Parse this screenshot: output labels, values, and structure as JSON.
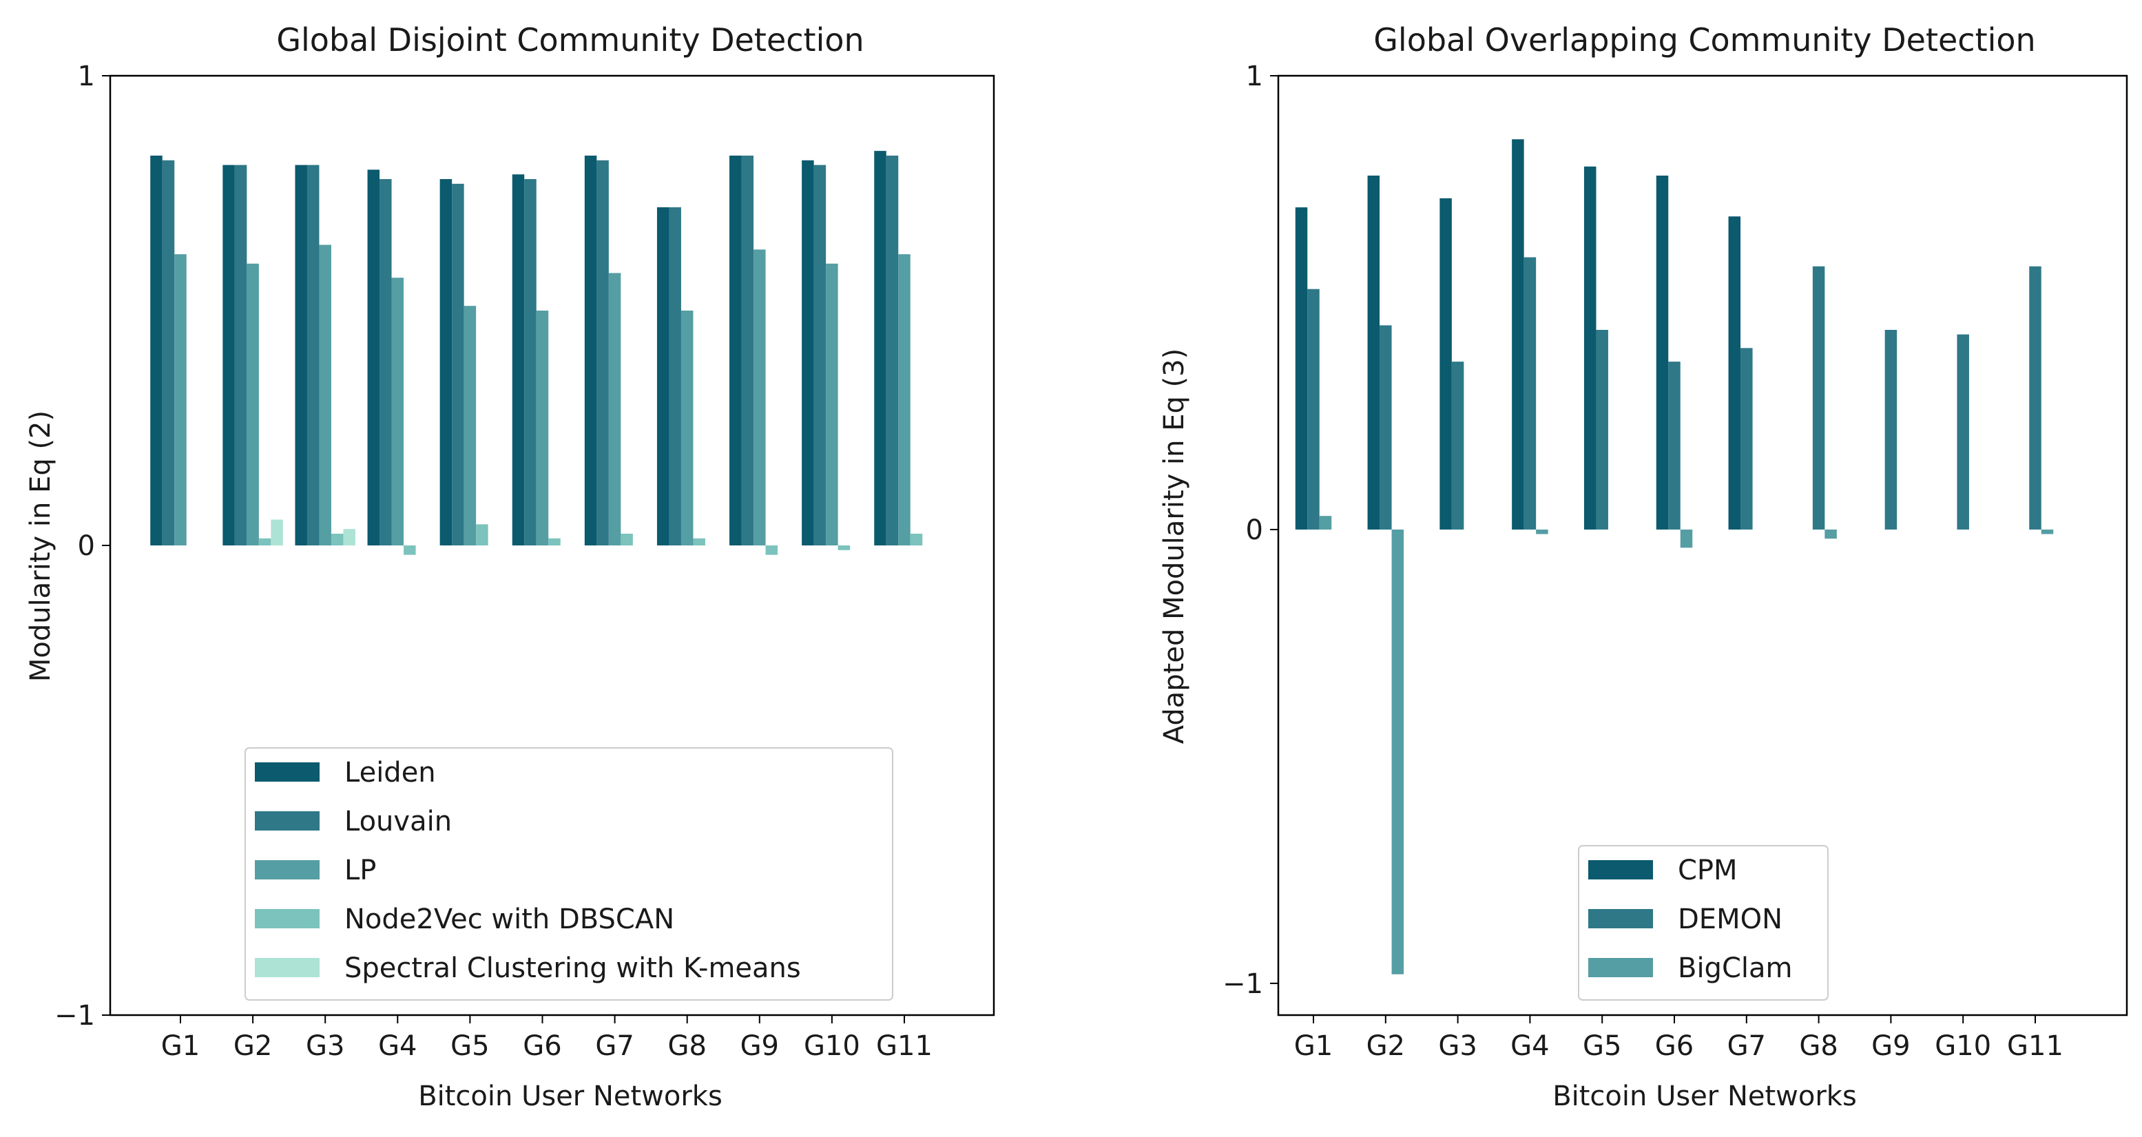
{
  "chart_data": [
    {
      "type": "bar",
      "title": "Global Disjoint Community Detection",
      "xlabel": "Bitcoin User Networks",
      "ylabel": "Modularity in Eq (2)",
      "ylim": [
        -1,
        1
      ],
      "yticks": [
        -1,
        0,
        1
      ],
      "yticklabels": [
        "−1",
        "0",
        "1"
      ],
      "categories": [
        "G1",
        "G2",
        "G3",
        "G4",
        "G5",
        "G6",
        "G7",
        "G8",
        "G9",
        "G10",
        "G11"
      ],
      "legend_position": "lower-center",
      "series": [
        {
          "name": "Leiden",
          "color": "#0b5a6e",
          "values": [
            0.83,
            0.81,
            0.81,
            0.8,
            0.78,
            0.79,
            0.83,
            0.72,
            0.83,
            0.82,
            0.84
          ]
        },
        {
          "name": "Louvain",
          "color": "#2e7888",
          "values": [
            0.82,
            0.81,
            0.81,
            0.78,
            0.77,
            0.78,
            0.82,
            0.72,
            0.83,
            0.81,
            0.83
          ]
        },
        {
          "name": "LP",
          "color": "#559ea3",
          "values": [
            0.62,
            0.6,
            0.64,
            0.57,
            0.51,
            0.5,
            0.58,
            0.5,
            0.63,
            0.6,
            0.62
          ]
        },
        {
          "name": "Node2Vec with DBSCAN",
          "color": "#7bc3bc",
          "values": [
            0.0,
            0.015,
            0.025,
            -0.02,
            0.045,
            0.015,
            0.025,
            0.015,
            -0.02,
            -0.01,
            0.025
          ]
        },
        {
          "name": "Spectral Clustering with K-means",
          "color": "#ade3d5",
          "values": [
            0.0,
            0.055,
            0.035,
            0.0,
            0.0,
            0.0,
            0.0,
            0.0,
            0.0,
            0.0,
            0.0
          ]
        }
      ]
    },
    {
      "type": "bar",
      "title": "Global Overlapping Community Detection",
      "xlabel": "Bitcoin User Networks",
      "ylabel": "Adapted Modularity in Eq (3)",
      "ylim": [
        -1.07,
        1
      ],
      "yticks": [
        -1,
        0,
        1
      ],
      "yticklabels": [
        "−1",
        "0",
        "1"
      ],
      "categories": [
        "G1",
        "G2",
        "G3",
        "G4",
        "G5",
        "G6",
        "G7",
        "G8",
        "G9",
        "G10",
        "G11"
      ],
      "legend_position": "lower-center",
      "series": [
        {
          "name": "CPM",
          "color": "#0b5a6e",
          "values": [
            0.71,
            0.78,
            0.73,
            0.86,
            0.8,
            0.78,
            0.69,
            0.0,
            0.0,
            0.0,
            0.0
          ]
        },
        {
          "name": "DEMON",
          "color": "#2e7888",
          "values": [
            0.53,
            0.45,
            0.37,
            0.6,
            0.44,
            0.37,
            0.4,
            0.58,
            0.44,
            0.43,
            0.58
          ]
        },
        {
          "name": "BigClam",
          "color": "#559ea3",
          "values": [
            0.03,
            -0.98,
            0.0,
            -0.01,
            0.0,
            -0.04,
            0.0,
            -0.02,
            0.0,
            0.0,
            -0.01
          ]
        }
      ]
    }
  ]
}
